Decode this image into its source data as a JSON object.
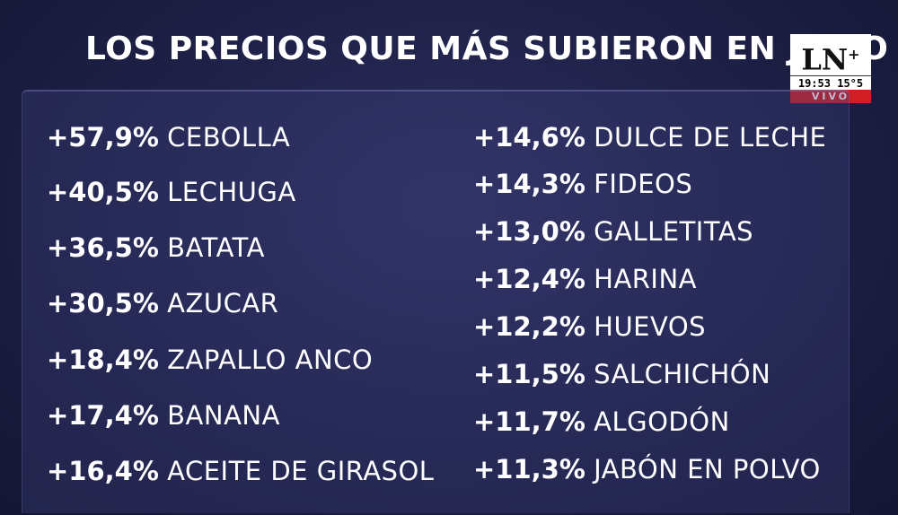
{
  "title": "LOS PRECIOS QUE MÁS SUBIERON EN JULIO",
  "logo": {
    "text": "LN",
    "plus": "+",
    "time": "19:53",
    "temp": "15°5",
    "live": "VIVO"
  },
  "left_items": [
    {
      "pct": "+57,9%",
      "name": "CEBOLLA"
    },
    {
      "pct": "+40,5%",
      "name": "LECHUGA"
    },
    {
      "pct": "+36,5%",
      "name": "BATATA"
    },
    {
      "pct": "+30,5%",
      "name": "AZUCAR"
    },
    {
      "pct": "+18,4%",
      "name": "ZAPALLO ANCO"
    },
    {
      "pct": "+17,4%",
      "name": "BANANA"
    },
    {
      "pct": "+16,4%",
      "name": "ACEITE DE GIRASOL"
    }
  ],
  "right_items": [
    {
      "pct": "+14,6%",
      "name": "DULCE DE LECHE"
    },
    {
      "pct": "+14,3%",
      "name": "FIDEOS"
    },
    {
      "pct": "+13,0%",
      "name": "GALLETITAS"
    },
    {
      "pct": "+12,4%",
      "name": "HARINA"
    },
    {
      "pct": "+12,2%",
      "name": "HUEVOS"
    },
    {
      "pct": "+11,5%",
      "name": "SALCHICHÓN"
    },
    {
      "pct": "+11,7%",
      "name": "ALGODÓN"
    },
    {
      "pct": "+11,3%",
      "name": "JABÓN EN POLVO"
    }
  ]
}
